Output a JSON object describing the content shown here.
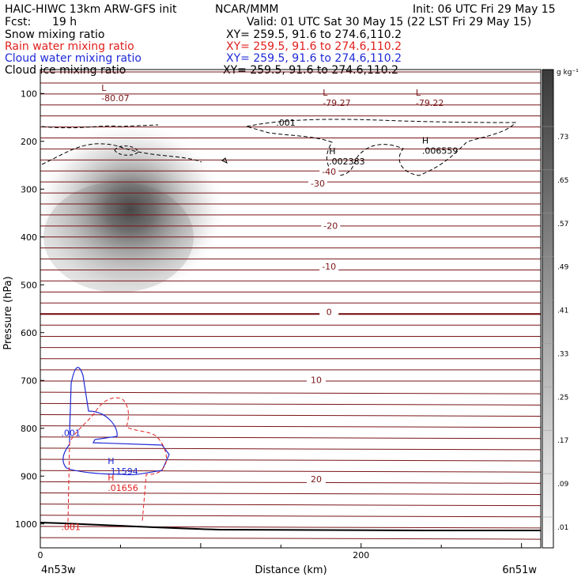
{
  "header": {
    "title": "HAIC-HIWC 13km ARW-GFS init",
    "org": "NCAR/MMM",
    "init": "Init: 06 UTC Fri 29 May 15",
    "fcst_label": "Fcst:",
    "fcst_value": "19 h",
    "valid": "Valid: 01 UTC Sat 30 May 15 (22 LST Fri 29 May 15)",
    "fields": [
      {
        "name": "Snow mixing ratio",
        "xy": "XY= 259.5, 91.6 to 274.6,110.2",
        "color": "#000000"
      },
      {
        "name": "Rain water mixing ratio",
        "xy": "XY= 259.5, 91.6 to 274.6,110.2",
        "color": "#e0201e"
      },
      {
        "name": "Cloud water mixing ratio",
        "xy": "XY= 259.5, 91.6 to 274.6,110.2",
        "color": "#1f2ad6"
      },
      {
        "name": "Cloud ice mixing ratio",
        "xy": "XY= 259.5, 91.6 to 274.6,110.2",
        "color": "#000000"
      }
    ]
  },
  "chart_data": {
    "type": "heatmap",
    "xlabel": "Distance (km)",
    "ylabel": "Pressure (hPa)",
    "x_ticks": [
      0,
      200
    ],
    "xlim": [
      0,
      312
    ],
    "y_ticks": [
      100,
      200,
      300,
      400,
      500,
      600,
      700,
      800,
      900,
      1000
    ],
    "ylim": [
      50,
      1050
    ],
    "x_endpoints": {
      "left": "4n53w",
      "right": "6n51w"
    },
    "colorbar": {
      "unit": "g kg⁻¹",
      "labels": [
        ".01",
        ".09",
        ".17",
        ".25",
        ".33",
        ".41",
        ".49",
        ".57",
        ".65",
        ".73"
      ]
    },
    "snow_max_region": {
      "x_km": [
        0,
        130
      ],
      "p_hPa": [
        180,
        500
      ]
    },
    "temperature_labels": [
      {
        "text": "-40",
        "x": 180,
        "p": 265
      },
      {
        "text": "-30",
        "x": 173,
        "p": 290
      },
      {
        "text": "-20",
        "x": 181,
        "p": 378
      },
      {
        "text": "-10",
        "x": 180,
        "p": 463
      },
      {
        "text": "0",
        "x": 180,
        "p": 558
      },
      {
        "text": "10",
        "x": 172,
        "p": 700
      },
      {
        "text": "20",
        "x": 172,
        "p": 908
      }
    ],
    "lows": [
      {
        "mark": "L",
        "value": "-80.07",
        "x": 42,
        "p": 98
      },
      {
        "mark": "L",
        "value": "-79.27",
        "x": 180,
        "p": 108
      },
      {
        "mark": "L",
        "value": "-79.22",
        "x": 238,
        "p": 108
      }
    ],
    "highs": [
      {
        "mark": "H",
        "value": ".002383",
        "x": 180,
        "p": 230,
        "color": "#000000"
      },
      {
        "mark": "H",
        "value": ".006559",
        "x": 238,
        "p": 208,
        "color": "#000000"
      },
      {
        "mark": "H",
        "value": ".11594",
        "x": 42,
        "p": 878,
        "color": "#1f2ad6"
      },
      {
        "mark": "H",
        "value": ".01656",
        "x": 42,
        "p": 913,
        "color": "#e0201e"
      }
    ],
    "contour_labels": [
      {
        "text": ".001",
        "x": 147,
        "p": 167,
        "color": "#000000"
      },
      {
        "text": ".001",
        "x": 13,
        "p": 816,
        "color": "#1f2ad6"
      },
      {
        "text": ".001",
        "x": 13,
        "p": 1013,
        "color": "#e0201e"
      }
    ]
  }
}
